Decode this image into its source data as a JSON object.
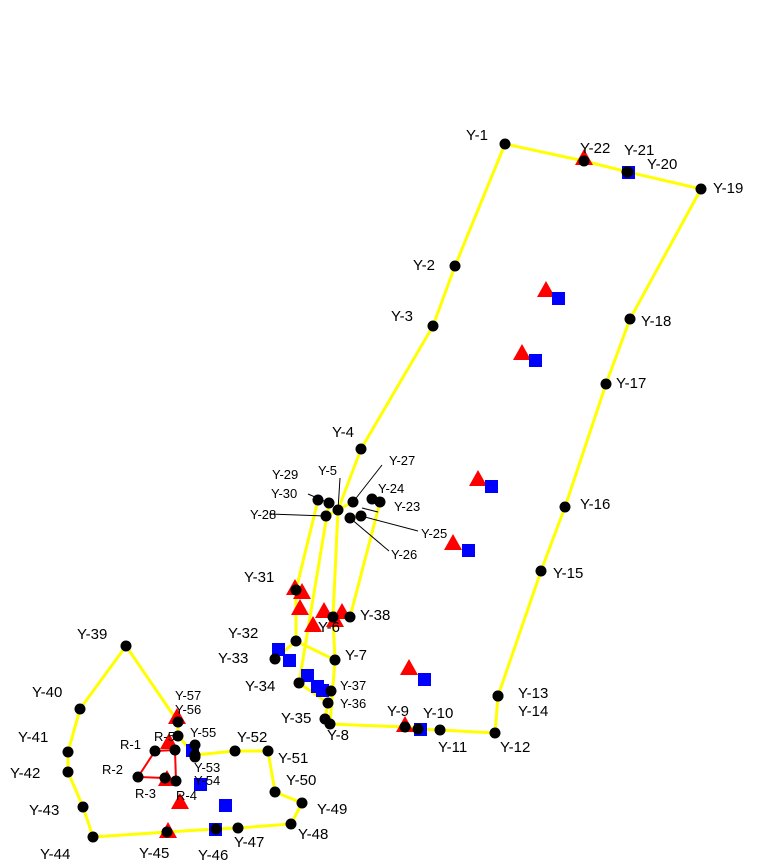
{
  "colors": {
    "background": "#ffffff",
    "outline": "#ffff00",
    "inner_outline": "#ff0000",
    "station_point": "#000000",
    "triangle_marker": "#ff0000",
    "square_marker": "#0000ff",
    "leader_line": "#000000"
  },
  "marker_legend": {
    "station_point": "black-dot",
    "triangle_marker": "red-triangle",
    "square_marker": "blue-square"
  },
  "labels": {
    "Y-1": "Y-1",
    "Y-2": "Y-2",
    "Y-3": "Y-3",
    "Y-4": "Y-4",
    "Y-5": "Y-5",
    "Y-6": "Y-6",
    "Y-7": "Y-7",
    "Y-8": "Y-8",
    "Y-9": "Y-9",
    "Y-10": "Y-10",
    "Y-11": "Y-11",
    "Y-12": "Y-12",
    "Y-13": "Y-13",
    "Y-14": "Y-14",
    "Y-15": "Y-15",
    "Y-16": "Y-16",
    "Y-17": "Y-17",
    "Y-18": "Y-18",
    "Y-19": "Y-19",
    "Y-20": "Y-20",
    "Y-21": "Y-21",
    "Y-22": "Y-22",
    "Y-23": "Y-23",
    "Y-24": "Y-24",
    "Y-25": "Y-25",
    "Y-26": "Y-26",
    "Y-27": "Y-27",
    "Y-28": "Y-28",
    "Y-29": "Y-29",
    "Y-30": "Y-30",
    "Y-31": "Y-31",
    "Y-32": "Y-32",
    "Y-33": "Y-33",
    "Y-34": "Y-34",
    "Y-35": "Y-35",
    "Y-36": "Y-36",
    "Y-37": "Y-37",
    "Y-38": "Y-38",
    "Y-39": "Y-39",
    "Y-40": "Y-40",
    "Y-41": "Y-41",
    "Y-42": "Y-42",
    "Y-43": "Y-43",
    "Y-44": "Y-44",
    "Y-45": "Y-45",
    "Y-46": "Y-46",
    "Y-47": "Y-47",
    "Y-48": "Y-48",
    "Y-49": "Y-49",
    "Y-50": "Y-50",
    "Y-51": "Y-51",
    "Y-52": "Y-52",
    "Y-53": "Y-53",
    "Y-54": "Y-54",
    "Y-55": "Y-55",
    "Y-56": "Y-56",
    "Y-57": "Y-57",
    "R-1": "R-1",
    "R-2": "R-2",
    "R-3": "R-3",
    "R-4": "R-4",
    "R-5": "R-5"
  }
}
